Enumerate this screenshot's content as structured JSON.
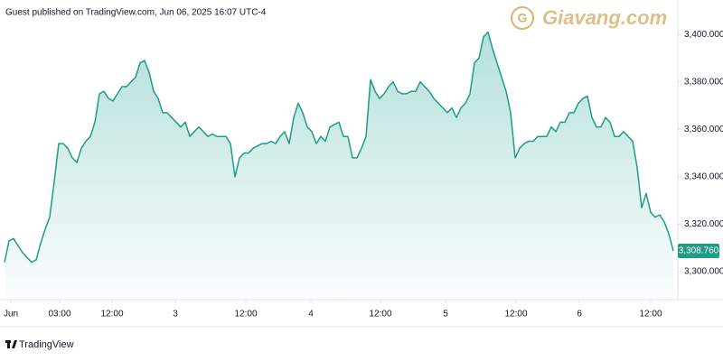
{
  "header": "Guest published on TradingView.com, Jun 06, 2025 16:07 UTC-4",
  "watermark": "Giavang.com",
  "footer": "TradingView",
  "chart_data": {
    "type": "area",
    "color": "#1f9c88",
    "x": [
      0,
      1,
      2,
      3,
      4,
      5,
      6,
      7,
      8,
      9,
      10,
      11,
      12,
      13,
      14,
      15,
      16,
      17,
      18,
      19,
      20,
      21,
      22,
      23,
      24,
      25,
      26,
      27,
      28,
      29,
      30,
      31,
      32,
      33,
      34,
      35,
      36,
      37,
      38,
      39,
      40,
      41,
      42,
      43,
      44,
      45,
      46,
      47,
      48,
      49,
      50,
      51,
      52,
      53,
      54,
      55,
      56,
      57,
      58,
      59,
      60,
      61,
      62,
      63,
      64,
      65,
      66,
      67,
      68,
      69,
      70,
      71,
      72,
      73,
      74,
      75,
      76,
      77,
      78,
      79,
      80,
      81,
      82,
      83,
      84,
      85,
      86,
      87,
      88,
      89,
      90,
      91,
      92,
      93,
      94,
      95,
      96,
      97,
      98,
      99,
      100,
      101,
      102,
      103,
      104,
      105,
      106,
      107,
      108,
      109,
      110,
      111,
      112,
      113,
      114,
      115,
      116,
      117,
      118,
      119,
      120,
      121,
      122,
      123,
      124,
      125,
      126,
      127,
      128,
      129,
      130,
      131,
      132,
      133,
      134,
      135,
      136,
      137,
      138,
      139,
      140,
      141,
      142,
      143,
      144,
      145,
      146,
      147,
      148
    ],
    "values": [
      3304,
      3313,
      3314,
      3311,
      3308,
      3306,
      3304,
      3305,
      3312,
      3318,
      3323,
      3338,
      3354,
      3354,
      3352,
      3348,
      3346,
      3352,
      3355,
      3357,
      3363,
      3375,
      3376,
      3373,
      3372,
      3375,
      3378,
      3378,
      3380,
      3382,
      3388,
      3389,
      3384,
      3376,
      3373,
      3367,
      3367,
      3365,
      3363,
      3361,
      3363,
      3357,
      3359,
      3361,
      3359,
      3357,
      3358,
      3357,
      3357,
      3357,
      3354,
      3340,
      3348,
      3350,
      3350,
      3352,
      3353,
      3354,
      3354,
      3355,
      3354,
      3357,
      3359,
      3354,
      3365,
      3371,
      3367,
      3361,
      3359,
      3354,
      3357,
      3355,
      3361,
      3362,
      3363,
      3357,
      3357,
      3348,
      3348,
      3352,
      3357,
      3381,
      3376,
      3373,
      3375,
      3378,
      3380,
      3376,
      3375,
      3375,
      3376,
      3376,
      3380,
      3378,
      3376,
      3373,
      3371,
      3369,
      3367,
      3369,
      3365,
      3369,
      3371,
      3375,
      3388,
      3390,
      3399,
      3401,
      3394,
      3388,
      3382,
      3376,
      3367,
      3348,
      3352,
      3354,
      3355,
      3355,
      3357,
      3357,
      3357,
      3361,
      3359,
      3363,
      3363,
      3367,
      3367,
      3371,
      3373,
      3374,
      3365,
      3361,
      3361,
      3365,
      3363,
      3357,
      3357,
      3359,
      3357,
      3355,
      3344,
      3327,
      3333,
      3325,
      3323,
      3324,
      3321,
      3316,
      3308.76
    ],
    "last_price": {
      "value": 3308.76,
      "label": "3,308.760"
    },
    "xlim": [
      0,
      148.6
    ],
    "xticks": [
      {
        "value": 1.4,
        "label": "Jun"
      },
      {
        "value": 12.2,
        "label": "03:00"
      },
      {
        "value": 23.8,
        "label": "12:00"
      },
      {
        "value": 37.8,
        "label": "3"
      },
      {
        "value": 53.4,
        "label": "12:00"
      },
      {
        "value": 67.8,
        "label": "4"
      },
      {
        "value": 83.2,
        "label": "12:00"
      },
      {
        "value": 97.6,
        "label": "5"
      },
      {
        "value": 113.2,
        "label": "12:00"
      },
      {
        "value": 127.2,
        "label": "6"
      },
      {
        "value": 143,
        "label": "12:00"
      }
    ],
    "ylim": [
      3289,
      3412.6
    ],
    "yticks": [
      {
        "value": 3300,
        "label": "3,300.000"
      },
      {
        "value": 3320,
        "label": "3,320.000"
      },
      {
        "value": 3340,
        "label": "3,340.000"
      },
      {
        "value": 3360,
        "label": "3,360.000"
      },
      {
        "value": 3380,
        "label": "3,380.000"
      },
      {
        "value": 3400,
        "label": "3,400.000"
      }
    ]
  }
}
